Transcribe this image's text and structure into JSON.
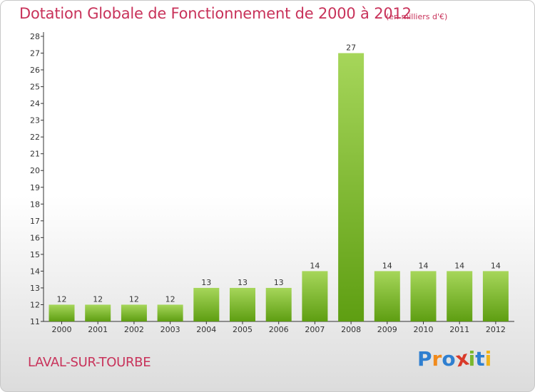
{
  "header": {
    "title": "Dotation Globale de Fonctionnement de 2000 à 2012",
    "subtitle": "(en milliers d'€)"
  },
  "footer": {
    "commune": "LAVAL-SUR-TOURBE",
    "logo_text": "Proxiti",
    "logo_colors": [
      "#2f7fd0",
      "#f08a1c",
      "#2f7fd0",
      "#d93a2a",
      "#7ab82e",
      "#2f7fd0",
      "#f0b41c"
    ]
  },
  "colors": {
    "bar_light": "#a6d65a",
    "bar_dark": "#5e9e12",
    "title": "#c8325a",
    "axis": "#333333"
  },
  "chart_data": {
    "type": "bar",
    "title": "Dotation Globale de Fonctionnement de 2000 à 2012",
    "subtitle": "(en milliers d'€)",
    "categories": [
      "2000",
      "2001",
      "2002",
      "2003",
      "2004",
      "2005",
      "2006",
      "2007",
      "2008",
      "2009",
      "2010",
      "2011",
      "2012"
    ],
    "values": [
      12,
      12,
      12,
      12,
      13,
      13,
      13,
      14,
      27,
      14,
      14,
      14,
      14
    ],
    "ylim": [
      11,
      28
    ],
    "yticks": [
      11,
      12,
      13,
      14,
      15,
      16,
      17,
      18,
      19,
      20,
      21,
      22,
      23,
      24,
      25,
      26,
      27,
      28
    ],
    "grid": false,
    "legend": "none"
  }
}
